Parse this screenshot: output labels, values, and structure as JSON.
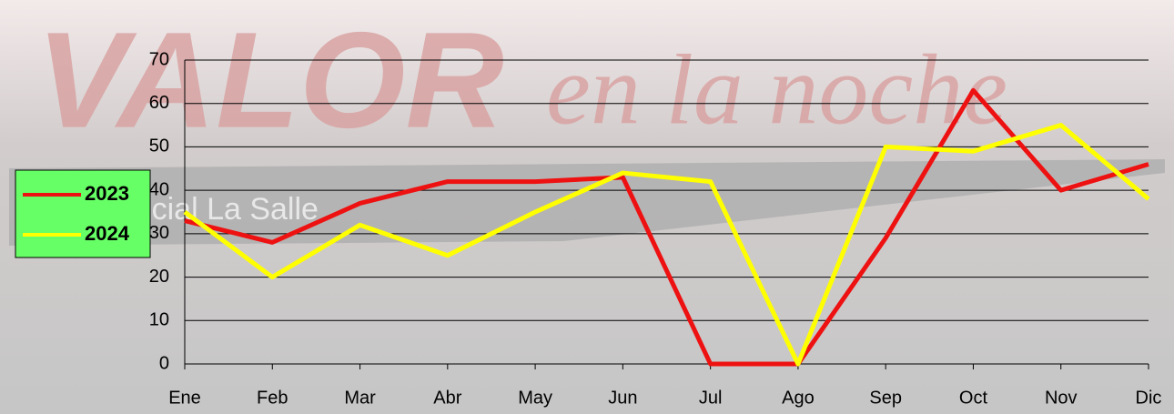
{
  "chart_data": {
    "type": "line",
    "watermark": {
      "brand": "VALOR",
      "tagline": "en la noche",
      "org": "Obra Social La Salle"
    },
    "categories": [
      "Ene",
      "Feb",
      "Mar",
      "Abr",
      "May",
      "Jun",
      "Jul",
      "Ago",
      "Sep",
      "Oct",
      "Nov",
      "Dic"
    ],
    "series": [
      {
        "name": "2023",
        "color": "#ee1111",
        "values": [
          33,
          28,
          37,
          42,
          42,
          43,
          0,
          0,
          29,
          63,
          40,
          46
        ]
      },
      {
        "name": "2024",
        "color": "#ffff00",
        "values": [
          35,
          20,
          32,
          25,
          35,
          44,
          42,
          0,
          50,
          49,
          55,
          38
        ]
      }
    ],
    "ylim": [
      0,
      70
    ],
    "yticks": [
      0,
      10,
      20,
      30,
      40,
      50,
      60,
      70
    ],
    "grid": true,
    "legend": "left"
  }
}
